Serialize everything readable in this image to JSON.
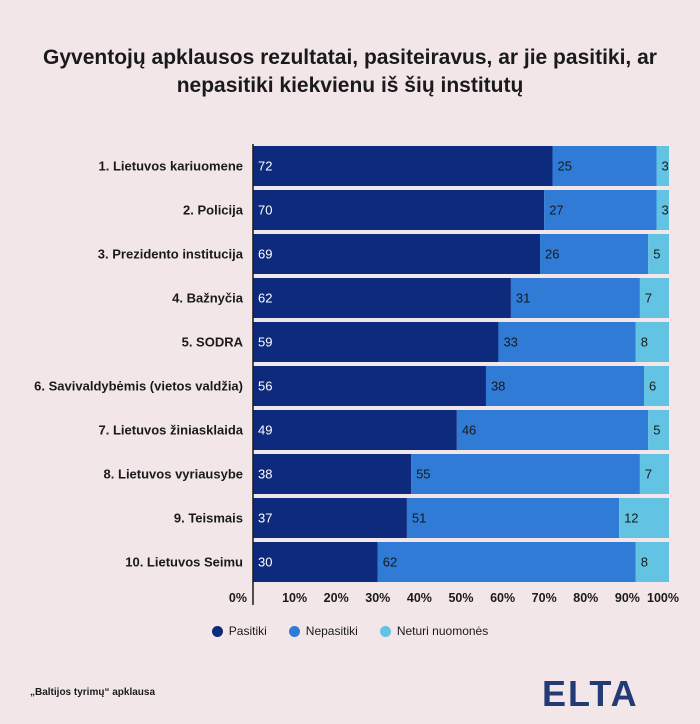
{
  "title": "Gyventojų apklausos rezultatai, pasiteiravus, ar jie pasitiki, ar nepasitiki kiekvienu iš šių institutų",
  "source": "„Baltijos tyrimų“ apklausa",
  "logo": "ELTA",
  "chart_data": {
    "type": "bar",
    "orientation": "horizontal",
    "stacked": true,
    "categories": [
      "1. Lietuvos kariuomene",
      "2. Policija",
      "3. Prezidento institucija",
      "4. Bažnyčia",
      "5. SODRA",
      "6. Savivaldybėmis (vietos valdžia)",
      "7. Lietuvos žiniasklaida",
      "8. Lietuvos vyriausybe",
      "9. Teismais",
      "10. Lietuvos Seimu"
    ],
    "series": [
      {
        "name": "Pasitiki",
        "color": "#0d2a7c",
        "values": [
          72,
          70,
          69,
          62,
          59,
          56,
          49,
          38,
          37,
          30
        ]
      },
      {
        "name": "Nepasitiki",
        "color": "#2f7bd6",
        "values": [
          25,
          27,
          26,
          31,
          33,
          38,
          46,
          55,
          51,
          62
        ]
      },
      {
        "name": "Neturi nuomonės",
        "color": "#62c3e3",
        "values": [
          3,
          3,
          5,
          7,
          8,
          6,
          5,
          7,
          12,
          8
        ]
      }
    ],
    "xlim": [
      0,
      100
    ],
    "ticks": [
      "0%",
      "10%",
      "20%",
      "30%",
      "40%",
      "50%",
      "60%",
      "70%",
      "80%",
      "90%",
      "100%"
    ],
    "legend_position": "bottom"
  }
}
